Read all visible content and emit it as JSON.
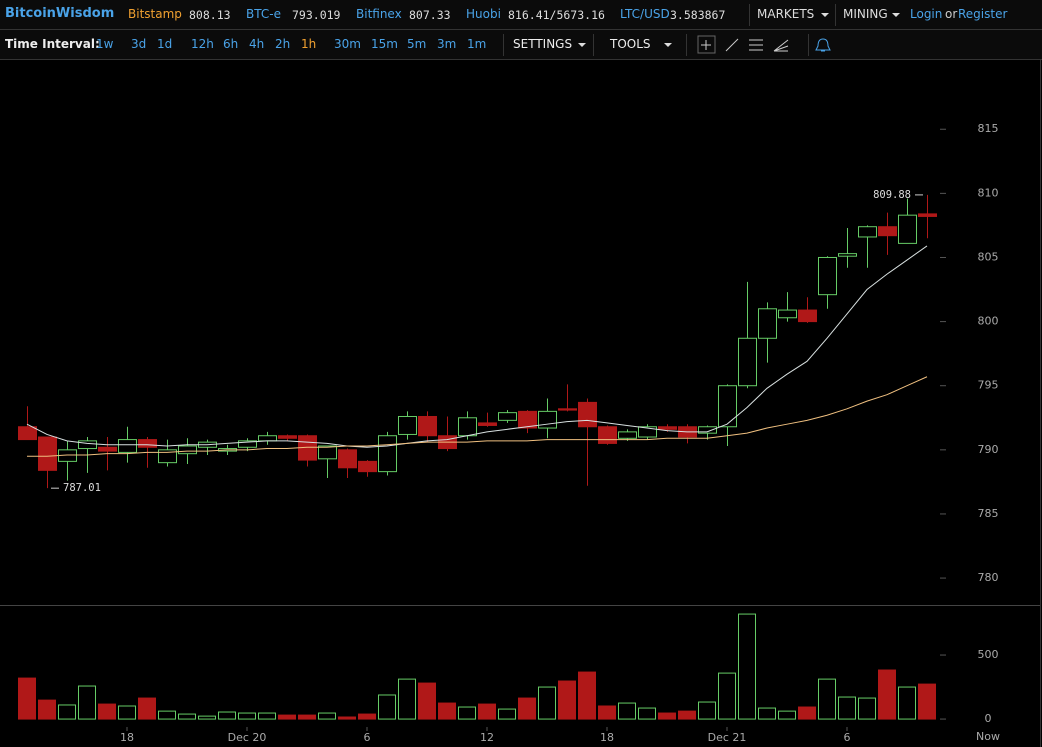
{
  "header": {
    "brand": "BitcoinWisdom",
    "exchanges": [
      {
        "name": "Bitstamp",
        "price": "808.13"
      },
      {
        "name": "BTC-e",
        "price": "793.019"
      },
      {
        "name": "Bitfinex",
        "price": "807.33"
      },
      {
        "name": "Huobi",
        "price": "816.41/5673.16"
      },
      {
        "name": "LTC/USD",
        "price": "3.583867"
      }
    ],
    "menus": [
      "MARKETS",
      "MINING"
    ],
    "login": "Login",
    "or": "or",
    "register": "Register"
  },
  "toolbar": {
    "label": "Time Interval:",
    "intervals": [
      "1w",
      "3d",
      "1d",
      "12h",
      "6h",
      "4h",
      "2h",
      "1h",
      "30m",
      "15m",
      "5m",
      "3m",
      "1m"
    ],
    "active": "1h",
    "settings": "SETTINGS",
    "tools": "TOOLS"
  },
  "chart_data": {
    "type": "candlestick",
    "categories": [
      null,
      null,
      null,
      null,
      null,
      "18",
      null,
      null,
      null,
      null,
      null,
      "Dec 20",
      null,
      null,
      null,
      null,
      null,
      "6",
      null,
      null,
      null,
      null,
      null,
      "12",
      null,
      null,
      null,
      null,
      null,
      "18",
      null,
      null,
      null,
      null,
      null,
      "Dec 21",
      null,
      null,
      null,
      null,
      null,
      "6",
      null,
      null,
      null,
      null
    ],
    "now_label": "Now",
    "open": [
      791.8,
      791.0,
      789.1,
      790.1,
      790.2,
      789.8,
      790.8,
      789.0,
      789.7,
      790.2,
      789.9,
      790.2,
      790.7,
      791.1,
      791.1,
      789.3,
      790.0,
      789.1,
      788.3,
      791.2,
      792.6,
      791.1,
      791.1,
      792.1,
      792.3,
      793.0,
      791.7,
      793.2,
      793.7,
      791.8,
      790.9,
      791.0,
      791.8,
      791.8,
      791.3,
      791.8,
      795.0,
      798.7,
      800.3,
      800.9,
      802.1,
      805.1,
      806.6,
      807.4,
      806.1,
      808.4
    ],
    "high": [
      793.4,
      791.0,
      790.7,
      791.0,
      791.0,
      791.8,
      791.0,
      790.8,
      790.9,
      790.8,
      790.4,
      790.9,
      791.4,
      791.2,
      791.2,
      790.3,
      790.1,
      789.2,
      791.4,
      793.0,
      793.0,
      792.6,
      793.0,
      792.9,
      793.1,
      793.1,
      794.0,
      795.1,
      794.0,
      791.9,
      791.6,
      792.0,
      792.0,
      792.0,
      791.9,
      795.1,
      803.1,
      801.5,
      802.3,
      801.9,
      805.1,
      807.3,
      807.5,
      808.5,
      809.6,
      809.88
    ],
    "low": [
      790.8,
      787.01,
      787.6,
      788.2,
      788.4,
      789.0,
      788.6,
      788.7,
      788.9,
      789.6,
      789.6,
      789.9,
      790.4,
      790.7,
      788.7,
      787.8,
      787.8,
      787.9,
      788.0,
      790.8,
      790.6,
      789.9,
      790.8,
      791.8,
      792.1,
      791.3,
      790.9,
      793.0,
      787.2,
      790.4,
      790.7,
      790.8,
      791.4,
      790.5,
      790.8,
      790.3,
      794.8,
      796.8,
      800.0,
      799.9,
      801.0,
      804.2,
      804.2,
      805.2,
      806.1,
      806.5
    ],
    "close": [
      790.8,
      788.4,
      790.0,
      790.7,
      789.9,
      790.8,
      790.2,
      790.0,
      790.3,
      790.6,
      790.1,
      790.7,
      791.1,
      790.9,
      789.2,
      790.3,
      788.6,
      788.3,
      791.1,
      792.6,
      791.1,
      790.1,
      792.5,
      791.9,
      792.9,
      791.7,
      793.0,
      793.1,
      791.8,
      790.5,
      791.4,
      791.8,
      791.6,
      791.0,
      791.8,
      795.0,
      798.7,
      801.0,
      800.9,
      800.0,
      805.0,
      805.3,
      807.4,
      806.7,
      808.3,
      808.2
    ],
    "volume": [
      320,
      148,
      110,
      258,
      117,
      102,
      164,
      62,
      39,
      23,
      55,
      47,
      47,
      31,
      31,
      47,
      16,
      39,
      188,
      312,
      281,
      125,
      94,
      117,
      78,
      164,
      250,
      297,
      367,
      102,
      125,
      86,
      47,
      62,
      133,
      359,
      820,
      86,
      62,
      94,
      312,
      172,
      164,
      383,
      250,
      273
    ],
    "moving_averages": [
      {
        "color": "#d8e0e0",
        "values": [
          792.0,
          791.2,
          790.7,
          790.5,
          790.4,
          790.4,
          790.4,
          790.3,
          790.4,
          790.4,
          790.5,
          790.6,
          790.7,
          790.7,
          790.6,
          790.5,
          790.3,
          790.2,
          790.3,
          790.5,
          790.7,
          790.8,
          791.1,
          791.4,
          791.6,
          791.8,
          792.0,
          792.2,
          792.3,
          792.1,
          791.9,
          791.7,
          791.5,
          791.4,
          791.4,
          792.0,
          793.3,
          794.8,
          795.9,
          796.9,
          798.7,
          800.6,
          802.5,
          803.7,
          804.8,
          805.9
        ]
      },
      {
        "color": "#f0c080",
        "values": [
          789.5,
          789.5,
          789.6,
          789.6,
          789.7,
          789.7,
          789.8,
          789.8,
          789.9,
          789.9,
          790.0,
          790.0,
          790.1,
          790.1,
          790.2,
          790.2,
          790.3,
          790.3,
          790.4,
          790.5,
          790.6,
          790.6,
          790.6,
          790.7,
          790.7,
          790.7,
          790.8,
          790.8,
          790.8,
          790.8,
          790.8,
          790.8,
          790.9,
          790.9,
          790.9,
          791.1,
          791.3,
          791.7,
          792.0,
          792.3,
          792.7,
          793.2,
          793.8,
          794.3,
          795.0,
          795.7
        ]
      }
    ],
    "annotations": [
      {
        "label": "809.88",
        "value": 809.88
      },
      {
        "label": "787.01",
        "value": 787.01
      }
    ],
    "up_color": "#66cc66",
    "down_color": "#b01818",
    "ylim": [
      777.9,
      820.4
    ],
    "yticks": [
      780,
      785,
      790,
      795,
      800,
      805,
      810,
      815
    ],
    "volume_lim": [
      -62,
      883
    ],
    "volume_ticks": [
      0,
      500
    ]
  }
}
